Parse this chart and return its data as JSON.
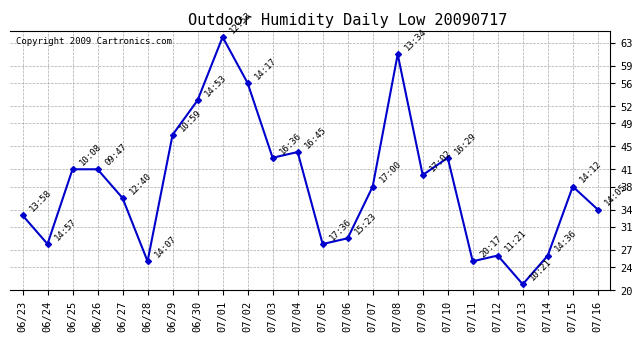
{
  "title": "Outdoor Humidity Daily Low 20090717",
  "copyright": "Copyright 2009 Cartronics.com",
  "x_labels": [
    "06/23",
    "06/24",
    "06/25",
    "06/26",
    "06/27",
    "06/28",
    "06/29",
    "06/30",
    "07/01",
    "07/02",
    "07/03",
    "07/04",
    "07/05",
    "07/06",
    "07/07",
    "07/08",
    "07/09",
    "07/10",
    "07/11",
    "07/12",
    "07/13",
    "07/14",
    "07/15",
    "07/16"
  ],
  "y_values": [
    33,
    28,
    41,
    41,
    36,
    25,
    47,
    53,
    64,
    56,
    43,
    44,
    28,
    29,
    38,
    61,
    40,
    43,
    25,
    26,
    21,
    26,
    38,
    34
  ],
  "point_labels": [
    "13:58",
    "14:57",
    "10:08",
    "09:47",
    "12:40",
    "14:07",
    "10:59",
    "14:53",
    "12:53",
    "14:17",
    "16:36",
    "16:45",
    "17:36",
    "15:23",
    "17:00",
    "13:34",
    "17:02",
    "16:29",
    "20:17",
    "11:21",
    "10:21",
    "14:36",
    "14:12",
    "14:05"
  ],
  "ylim": [
    20,
    65
  ],
  "yticks": [
    20,
    24,
    27,
    31,
    34,
    38,
    41,
    45,
    49,
    52,
    56,
    59,
    63
  ],
  "line_color": "#0000cc",
  "marker_color": "#0000cc",
  "bg_color": "#ffffff",
  "grid_color": "#aaaaaa",
  "title_fontsize": 11,
  "label_fontsize": 6.5,
  "tick_fontsize": 7.5,
  "copyright_fontsize": 6.5
}
